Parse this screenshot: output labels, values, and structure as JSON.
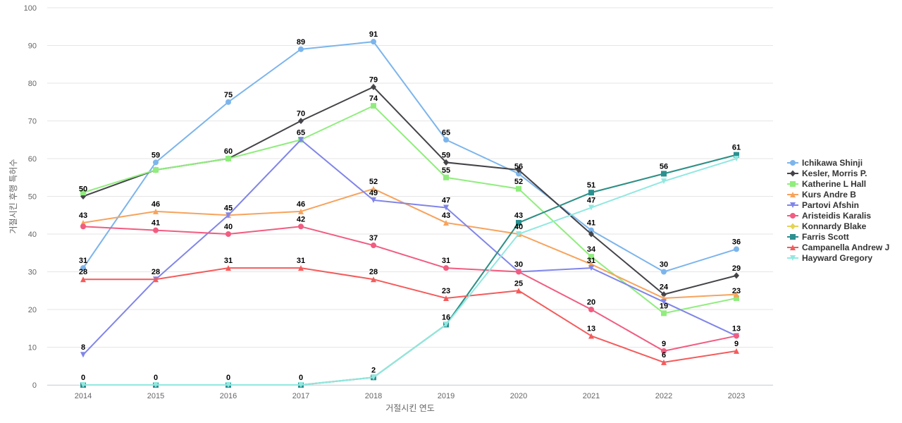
{
  "chart_data": {
    "type": "line",
    "title": "",
    "xlabel": "거절시킨 연도",
    "ylabel": "거절시킨 후행 특허수",
    "x": [
      2014,
      2015,
      2016,
      2017,
      2018,
      2019,
      2020,
      2021,
      2022,
      2023
    ],
    "ylim": [
      0,
      100
    ],
    "yticks": [
      0,
      10,
      20,
      30,
      40,
      50,
      60,
      70,
      80,
      90,
      100
    ],
    "grid": true,
    "legend": "right",
    "series": [
      {
        "name": "Ichikawa Shinji",
        "color": "#7cb5ec",
        "marker": "circle",
        "values": [
          31,
          59,
          75,
          89,
          91,
          65,
          56,
          41,
          30,
          36
        ]
      },
      {
        "name": "Kesler, Morris P.",
        "color": "#434348",
        "marker": "diamond",
        "values": [
          50,
          57,
          60,
          70,
          79,
          59,
          57,
          40,
          24,
          29
        ]
      },
      {
        "name": "Katherine L Hall",
        "color": "#90ed7d",
        "marker": "square",
        "values": [
          51,
          57,
          60,
          65,
          74,
          55,
          52,
          34,
          19,
          23
        ]
      },
      {
        "name": "Kurs Andre B",
        "color": "#f7a35c",
        "marker": "triangle",
        "values": [
          43,
          46,
          45,
          46,
          52,
          43,
          40,
          32,
          23,
          24
        ]
      },
      {
        "name": "Partovi Afshin",
        "color": "#8085e9",
        "marker": "triangle-down",
        "values": [
          8,
          28,
          45,
          65,
          49,
          47,
          30,
          31,
          22,
          13
        ]
      },
      {
        "name": "Aristeidis Karalis",
        "color": "#f15c80",
        "marker": "circle",
        "values": [
          42,
          41,
          40,
          42,
          37,
          31,
          30,
          20,
          9,
          13
        ]
      },
      {
        "name": "Konnardy Blake",
        "color": "#e4d354",
        "marker": "diamond",
        "values": [
          0,
          0,
          0,
          0,
          2,
          16,
          43,
          51,
          56,
          61
        ]
      },
      {
        "name": "Farris Scott",
        "color": "#2b908f",
        "marker": "square",
        "values": [
          0,
          0,
          0,
          0,
          2,
          16,
          43,
          51,
          56,
          61
        ]
      },
      {
        "name": "Campanella Andrew J",
        "color": "#f45b5b",
        "marker": "triangle",
        "values": [
          28,
          28,
          31,
          31,
          28,
          23,
          25,
          13,
          6,
          9
        ]
      },
      {
        "name": "Hayward Gregory",
        "color": "#91e8e1",
        "marker": "triangle-down",
        "values": [
          0,
          0,
          0,
          0,
          2,
          16,
          40,
          47,
          54,
          60
        ]
      }
    ],
    "data_labels": [
      {
        "x": 2014,
        "value": 31
      },
      {
        "x": 2015,
        "value": 59
      },
      {
        "x": 2016,
        "value": 75
      },
      {
        "x": 2017,
        "value": 89
      },
      {
        "x": 2018,
        "value": 91
      },
      {
        "x": 2019,
        "value": 65
      },
      {
        "x": 2020,
        "value": 56
      },
      {
        "x": 2021,
        "value": 41
      },
      {
        "x": 2022,
        "value": 30
      },
      {
        "x": 2023,
        "value": 36
      },
      {
        "x": 2014,
        "value": 50
      },
      {
        "x": 2016,
        "value": 60
      },
      {
        "x": 2017,
        "value": 70
      },
      {
        "x": 2018,
        "value": 79
      },
      {
        "x": 2019,
        "value": 59
      },
      {
        "x": 2022,
        "value": 24
      },
      {
        "x": 2023,
        "value": 29
      },
      {
        "x": 2017,
        "value": 65
      },
      {
        "x": 2018,
        "value": 74
      },
      {
        "x": 2019,
        "value": 55
      },
      {
        "x": 2020,
        "value": 52
      },
      {
        "x": 2021,
        "value": 34
      },
      {
        "x": 2022,
        "value": 19
      },
      {
        "x": 2023,
        "value": 23
      },
      {
        "x": 2014,
        "value": 43
      },
      {
        "x": 2015,
        "value": 46
      },
      {
        "x": 2016,
        "value": 45
      },
      {
        "x": 2017,
        "value": 46
      },
      {
        "x": 2018,
        "value": 52
      },
      {
        "x": 2019,
        "value": 43
      },
      {
        "x": 2020,
        "value": 40
      },
      {
        "x": 2014,
        "value": 8
      },
      {
        "x": 2018,
        "value": 49
      },
      {
        "x": 2019,
        "value": 47
      },
      {
        "x": 2020,
        "value": 30
      },
      {
        "x": 2021,
        "value": 31
      },
      {
        "x": 2023,
        "value": 13
      },
      {
        "x": 2015,
        "value": 41
      },
      {
        "x": 2016,
        "value": 40
      },
      {
        "x": 2017,
        "value": 42
      },
      {
        "x": 2018,
        "value": 37
      },
      {
        "x": 2019,
        "value": 31
      },
      {
        "x": 2021,
        "value": 20
      },
      {
        "x": 2022,
        "value": 9
      },
      {
        "x": 2014,
        "value": 0
      },
      {
        "x": 2015,
        "value": 0
      },
      {
        "x": 2016,
        "value": 0
      },
      {
        "x": 2017,
        "value": 0
      },
      {
        "x": 2018,
        "value": 2
      },
      {
        "x": 2019,
        "value": 16
      },
      {
        "x": 2020,
        "value": 43
      },
      {
        "x": 2021,
        "value": 51
      },
      {
        "x": 2022,
        "value": 56
      },
      {
        "x": 2023,
        "value": 61
      },
      {
        "x": 2014,
        "value": 28
      },
      {
        "x": 2015,
        "value": 28
      },
      {
        "x": 2016,
        "value": 31
      },
      {
        "x": 2017,
        "value": 31
      },
      {
        "x": 2018,
        "value": 28
      },
      {
        "x": 2019,
        "value": 23
      },
      {
        "x": 2020,
        "value": 25
      },
      {
        "x": 2021,
        "value": 13
      },
      {
        "x": 2022,
        "value": 6
      },
      {
        "x": 2023,
        "value": 9
      },
      {
        "x": 2021,
        "value": 47
      }
    ]
  }
}
